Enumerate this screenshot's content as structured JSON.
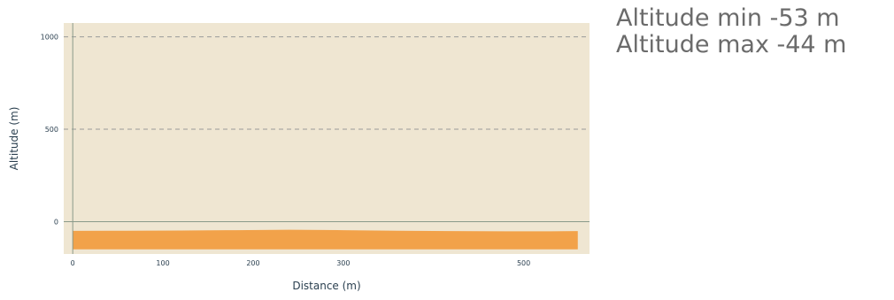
{
  "chart_data": {
    "type": "area",
    "xlabel": "Distance (m)",
    "ylabel": "Altitude (m)",
    "xlim": [
      -10,
      573
    ],
    "ylim": [
      -175,
      1075
    ],
    "x_ticks": [
      0,
      100,
      200,
      300,
      500
    ],
    "y_ticks": [
      0,
      500,
      1000
    ],
    "grid": "horizontal dashed",
    "plot_background": "#efe6d2",
    "fill_color": "#f2a24a",
    "baseline": -150,
    "series": [
      {
        "x": [
          0,
          60,
          120,
          180,
          240,
          300,
          360,
          420,
          480,
          530,
          560
        ],
        "values": [
          -50,
          -49,
          -48,
          -46,
          -44,
          -46,
          -49,
          -51,
          -52,
          -52,
          -51
        ]
      }
    ]
  },
  "stats": {
    "min_label": "Altitude min -53 m",
    "max_label": "Altitude max -44 m"
  },
  "colors": {
    "axis_text": "#2a3f4f",
    "stats_text": "#6b6b6b"
  }
}
